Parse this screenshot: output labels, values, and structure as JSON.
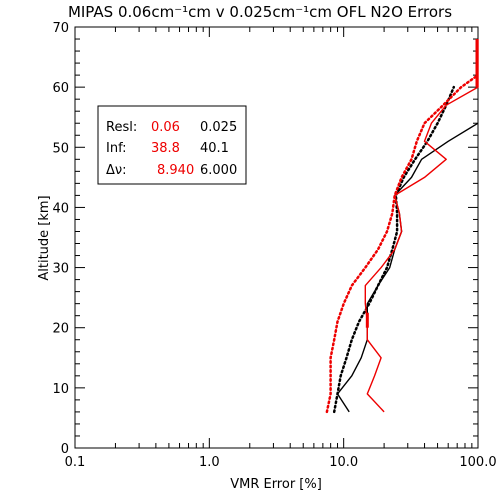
{
  "chart_data": {
    "type": "line",
    "title": "MIPAS 0.06cm⁻¹cm v 0.025cm⁻¹cm OFL N2O Errors",
    "xlabel": "VMR Error [%]",
    "ylabel": "Altitude [km]",
    "xscale": "log",
    "xlim": [
      0.1,
      100.0
    ],
    "ylim": [
      0,
      70
    ],
    "x_ticks": [
      {
        "value": 0.1,
        "label": "0.1"
      },
      {
        "value": 1.0,
        "label": "1.0"
      },
      {
        "value": 10.0,
        "label": "10.0"
      },
      {
        "value": 100.0,
        "label": "100.0"
      }
    ],
    "y_ticks": [
      {
        "value": 0,
        "label": "0"
      },
      {
        "value": 10,
        "label": "10"
      },
      {
        "value": 20,
        "label": "20"
      },
      {
        "value": 30,
        "label": "30"
      },
      {
        "value": 40,
        "label": "40"
      },
      {
        "value": 50,
        "label": "50"
      },
      {
        "value": 60,
        "label": "60"
      },
      {
        "value": 70,
        "label": "70"
      }
    ],
    "grid": false,
    "legend_position": "top-left",
    "legend": {
      "rows": [
        {
          "label": "Resl:",
          "red": "0.06",
          "black": "0.025"
        },
        {
          "label": "Inf:",
          "red": "38.8",
          "black": "40.1"
        },
        {
          "label": "Δν:",
          "red": "8.940",
          "black": "6.000"
        }
      ]
    },
    "series": [
      {
        "color": "#000000",
        "style": "solid",
        "points": [
          [
            11.0,
            6
          ],
          [
            9.0,
            9
          ],
          [
            11.5,
            12
          ],
          [
            13.5,
            15
          ],
          [
            15.0,
            18
          ],
          [
            15.0,
            21
          ],
          [
            15.0,
            24
          ],
          [
            18.0,
            27
          ],
          [
            22.0,
            30
          ],
          [
            24.0,
            33
          ],
          [
            27.0,
            36
          ],
          [
            26.0,
            39
          ],
          [
            24.0,
            42
          ],
          [
            32.0,
            45
          ],
          [
            38.0,
            48
          ],
          [
            60.0,
            51
          ],
          [
            100.0,
            54
          ]
        ]
      },
      {
        "color": "#000000",
        "style": "dotted",
        "points": [
          [
            8.5,
            6
          ],
          [
            9.0,
            9
          ],
          [
            9.5,
            12
          ],
          [
            10.5,
            15
          ],
          [
            11.5,
            18
          ],
          [
            13.0,
            21
          ],
          [
            15.5,
            24
          ],
          [
            18.0,
            27
          ],
          [
            21.0,
            30
          ],
          [
            23.0,
            33
          ],
          [
            25.0,
            36
          ],
          [
            25.0,
            39
          ],
          [
            24.5,
            42
          ],
          [
            28.0,
            45
          ],
          [
            34.0,
            48
          ],
          [
            42.0,
            51
          ],
          [
            50.0,
            54
          ],
          [
            58.0,
            57
          ],
          [
            66.0,
            60
          ]
        ]
      },
      {
        "color": "#ee0000",
        "style": "solid",
        "points": [
          [
            20.0,
            6
          ],
          [
            15.0,
            9
          ],
          [
            17.0,
            12
          ],
          [
            19.0,
            15
          ],
          [
            15.0,
            18
          ],
          [
            15.0,
            21
          ],
          [
            14.5,
            24
          ],
          [
            14.5,
            27
          ],
          [
            19.0,
            30
          ],
          [
            24.0,
            33
          ],
          [
            27.0,
            36
          ],
          [
            26.0,
            39
          ],
          [
            24.0,
            42
          ],
          [
            40.0,
            45
          ],
          [
            58.0,
            48
          ],
          [
            40.0,
            51
          ],
          [
            45.0,
            54
          ],
          [
            58.0,
            57
          ],
          [
            100.0,
            60
          ],
          [
            100.0,
            63
          ],
          [
            100.0,
            66
          ],
          [
            100.0,
            68
          ]
        ]
      },
      {
        "color": "#ee0000",
        "style": "dotted",
        "points": [
          [
            7.5,
            6
          ],
          [
            8.0,
            9
          ],
          [
            8.0,
            12
          ],
          [
            8.0,
            15
          ],
          [
            8.5,
            18
          ],
          [
            9.0,
            21
          ],
          [
            10.0,
            24
          ],
          [
            11.5,
            27
          ],
          [
            14.5,
            30
          ],
          [
            18.0,
            33
          ],
          [
            21.0,
            36
          ],
          [
            23.0,
            39
          ],
          [
            24.0,
            42
          ],
          [
            27.0,
            45
          ],
          [
            32.0,
            48
          ],
          [
            35.0,
            51
          ],
          [
            40.0,
            54
          ],
          [
            55.0,
            57
          ],
          [
            75.0,
            60
          ],
          [
            100.0,
            62
          ]
        ]
      }
    ]
  }
}
